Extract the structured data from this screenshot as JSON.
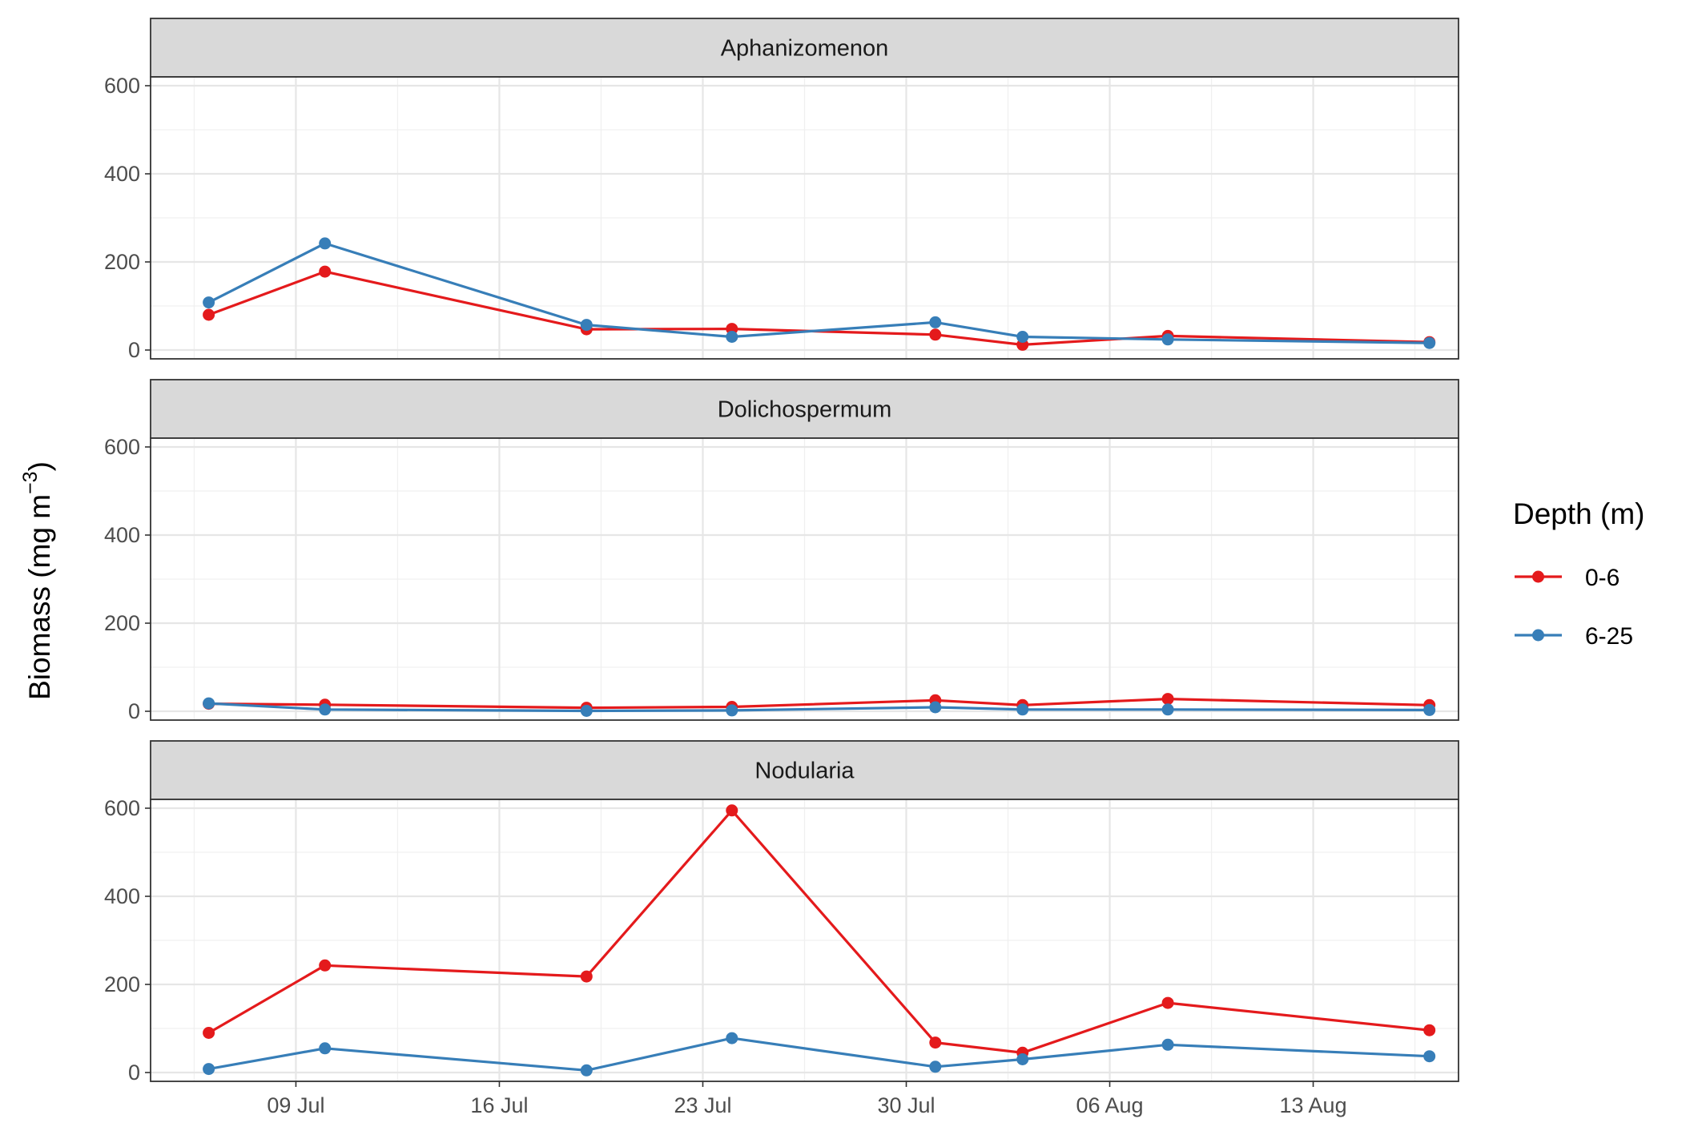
{
  "chart_data": {
    "type": "line",
    "facet_by": "taxon",
    "facets": [
      "Aphanizomenon",
      "Dolichospermum",
      "Nodularia"
    ],
    "x": [
      "2023-07-06",
      "2023-07-10",
      "2023-07-19",
      "2023-07-24",
      "2023-07-31",
      "2023-08-03",
      "2023-08-08",
      "2023-08-17"
    ],
    "x_ticks": [
      {
        "date": "2023-07-09",
        "label": "09 Jul"
      },
      {
        "date": "2023-07-16",
        "label": "16 Jul"
      },
      {
        "date": "2023-07-23",
        "label": "23 Jul"
      },
      {
        "date": "2023-07-30",
        "label": "30 Jul"
      },
      {
        "date": "2023-08-06",
        "label": "06 Aug"
      },
      {
        "date": "2023-08-13",
        "label": "13 Aug"
      }
    ],
    "xlim": [
      "2023-07-04",
      "2023-08-18"
    ],
    "ylim": [
      -20,
      620
    ],
    "y_ticks": [
      0,
      200,
      400,
      600
    ],
    "ylabel": "Biomass (mg m",
    "ylabel_sup": "−3",
    "ylabel_close": ")",
    "xlabel": "",
    "legend": {
      "title": "Depth (m)",
      "position": "right"
    },
    "grid": true,
    "series": [
      {
        "name": "0-6",
        "color": "#e41a1c",
        "values": {
          "Aphanizomenon": [
            80,
            178,
            47,
            48,
            35,
            12,
            32,
            18
          ],
          "Dolichospermum": [
            17,
            15,
            8,
            10,
            25,
            14,
            28,
            14
          ],
          "Nodularia": [
            90,
            243,
            218,
            595,
            68,
            45,
            158,
            96
          ]
        }
      },
      {
        "name": "6-25",
        "color": "#377eb8",
        "values": {
          "Aphanizomenon": [
            108,
            242,
            57,
            30,
            63,
            30,
            24,
            16
          ],
          "Dolichospermum": [
            18,
            4,
            1,
            2,
            9,
            4,
            4,
            3
          ],
          "Nodularia": [
            8,
            55,
            5,
            78,
            13,
            30,
            63,
            37
          ]
        }
      }
    ]
  }
}
